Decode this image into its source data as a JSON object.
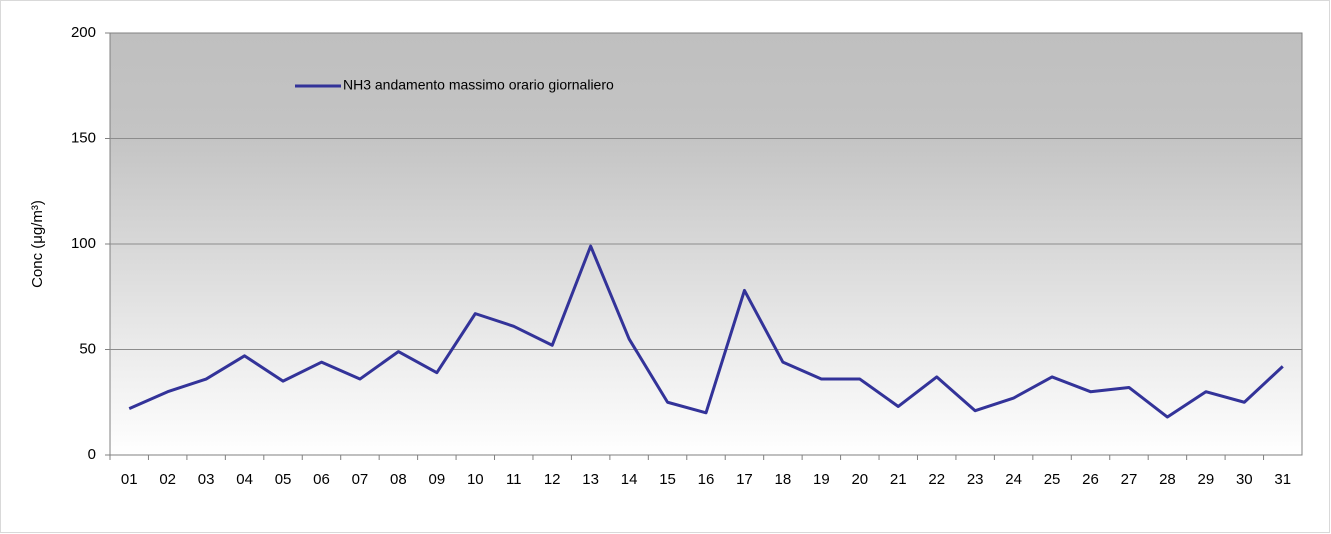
{
  "chart_data": {
    "type": "line",
    "y_label": "Conc (μg/m³)",
    "categories": [
      "01",
      "02",
      "03",
      "04",
      "05",
      "06",
      "07",
      "08",
      "09",
      "10",
      "11",
      "12",
      "13",
      "14",
      "15",
      "16",
      "17",
      "18",
      "19",
      "20",
      "21",
      "22",
      "23",
      "24",
      "25",
      "26",
      "27",
      "28",
      "29",
      "30",
      "31"
    ],
    "series": [
      {
        "name": "NH3 andamento massimo orario giornaliero",
        "color": "#333399",
        "values": [
          22,
          30,
          36,
          47,
          35,
          44,
          36,
          49,
          39,
          67,
          61,
          52,
          99,
          55,
          25,
          20,
          78,
          44,
          36,
          36,
          23,
          37,
          21,
          27,
          37,
          30,
          32,
          18,
          30,
          25,
          42
        ]
      }
    ],
    "ylim": [
      0,
      200
    ],
    "yticks": [
      0,
      50,
      100,
      150,
      200
    ],
    "grid": true,
    "legend_position": "top-left"
  }
}
